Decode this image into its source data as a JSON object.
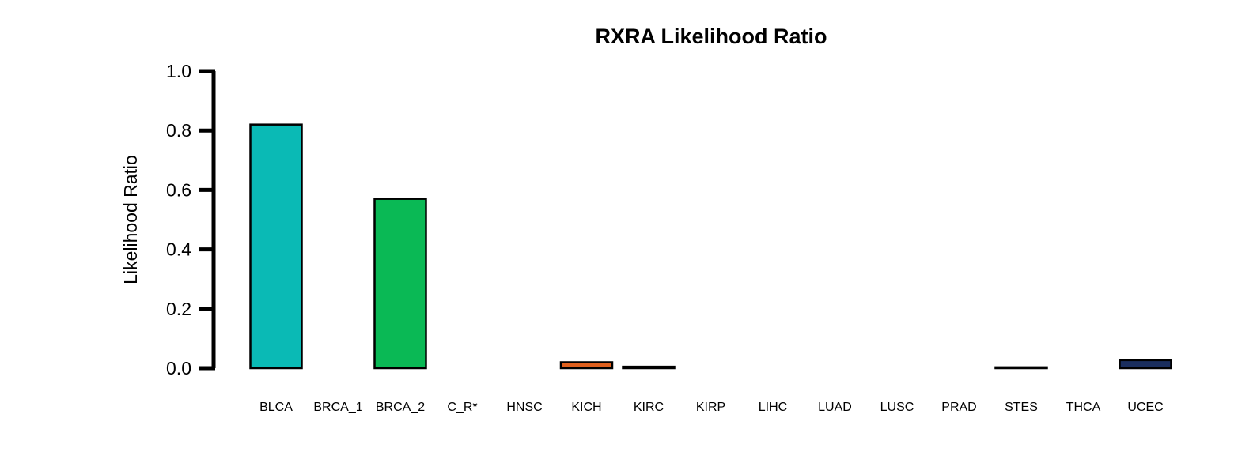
{
  "chart_data": {
    "type": "bar",
    "title": "RXRA Likelihood Ratio",
    "xlabel": "",
    "ylabel": "Likelihood Ratio",
    "ylim": [
      0,
      1.0
    ],
    "yticks": [
      "0.0",
      "0.2",
      "0.4",
      "0.6",
      "0.8",
      "1.0"
    ],
    "grid": false,
    "legend": "none",
    "categories": [
      "BLCA",
      "BRCA_1",
      "BRCA_2",
      "C_R*",
      "HNSC",
      "KICH",
      "KIRC",
      "KIRP",
      "LIHC",
      "LUAD",
      "LUSC",
      "PRAD",
      "STES",
      "THCA",
      "UCEC"
    ],
    "values": [
      0.82,
      0.0,
      0.57,
      0.0,
      0.0,
      0.02,
      0.005,
      0.0,
      0.0,
      0.0,
      0.0,
      0.0,
      0.003,
      0.0,
      0.027
    ],
    "colors": [
      "#0ABAB5",
      "#000000",
      "#0AB955",
      "#000000",
      "#000000",
      "#E0601E",
      "#000000",
      "#000000",
      "#000000",
      "#000000",
      "#000000",
      "#000000",
      "#000000",
      "#000000",
      "#1A2E5E"
    ]
  }
}
